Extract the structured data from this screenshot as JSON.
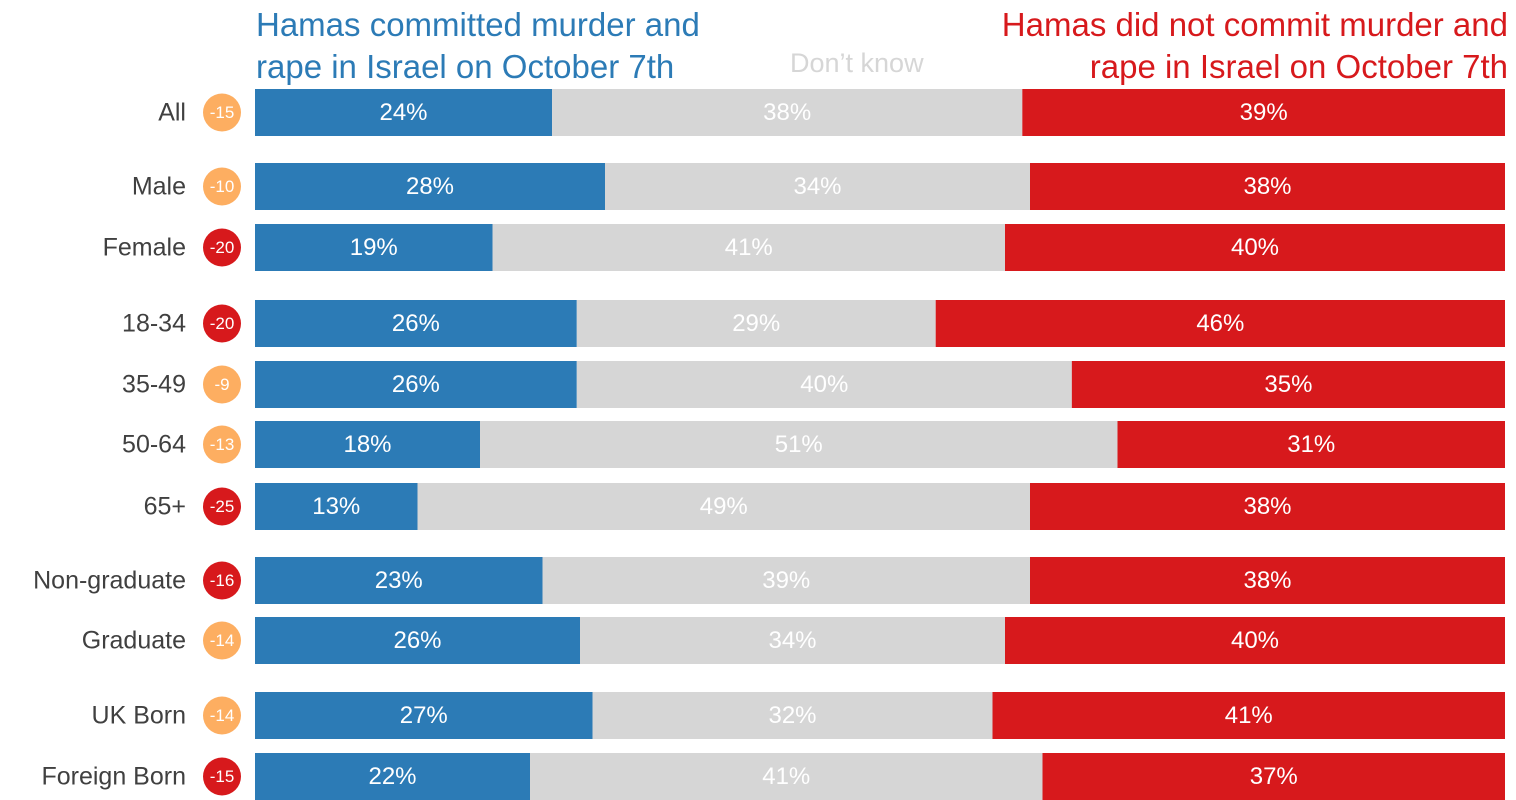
{
  "chart_data": {
    "type": "bar",
    "stacked": true,
    "orientation": "horizontal",
    "legend": [
      {
        "name": "Hamas committed murder and rape in Israel on October 7th",
        "color": "#2c7bb6"
      },
      {
        "name": "Don’t know",
        "color": "#d6d6d6"
      },
      {
        "name": "Hamas did not commit murder and rape in Israel on October 7th",
        "color": "#d7191c"
      }
    ],
    "categories": [
      "All",
      "Male",
      "Female",
      "18-34",
      "35-49",
      "50-64",
      "65+",
      "Non-graduate",
      "Graduate",
      "UK Born",
      "Foreign Born"
    ],
    "groups": [
      [
        "All"
      ],
      [
        "Male",
        "Female"
      ],
      [
        "18-34",
        "35-49",
        "50-64",
        "65+"
      ],
      [
        "Non-graduate",
        "Graduate"
      ],
      [
        "UK Born",
        "Foreign Born"
      ]
    ],
    "series": [
      {
        "name": "Hamas committed murder and rape in Israel on October 7th",
        "values": [
          24,
          28,
          19,
          26,
          26,
          18,
          13,
          23,
          26,
          27,
          22
        ]
      },
      {
        "name": "Don’t know",
        "values": [
          38,
          34,
          41,
          29,
          40,
          51,
          49,
          39,
          34,
          32,
          41
        ]
      },
      {
        "name": "Hamas did not commit murder and rape in Israel on October 7th",
        "values": [
          39,
          38,
          40,
          46,
          35,
          31,
          38,
          38,
          40,
          41,
          37
        ]
      }
    ],
    "net": [
      -15,
      -10,
      -20,
      -20,
      -9,
      -13,
      -25,
      -16,
      -14,
      -14,
      -15
    ],
    "net_colors": {
      "moderate": "#fdae61",
      "strong": "#d7191c"
    },
    "label_suffix": "%"
  }
}
